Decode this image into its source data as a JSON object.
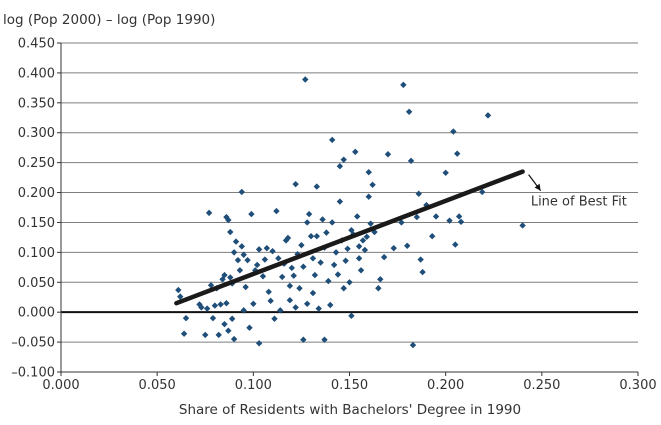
{
  "chart_data": {
    "type": "scatter",
    "ylabel": "log (Pop 2000) – log (Pop 1990)",
    "xlabel": "Share of Residents with Bachelors' Degree in 1990",
    "xlim": [
      0,
      0.3
    ],
    "ylim": [
      -0.1,
      0.45
    ],
    "x_ticks": [
      0,
      0.05,
      0.1,
      0.15,
      0.2,
      0.25,
      0.3
    ],
    "x_tick_labels": [
      "0.000",
      "0.050",
      "0.100",
      "0.150",
      "0.200",
      "0.250",
      "0.300"
    ],
    "y_ticks": [
      -0.1,
      -0.05,
      0,
      0.05,
      0.1,
      0.15,
      0.2,
      0.25,
      0.3,
      0.35,
      0.4,
      0.45
    ],
    "y_tick_labels": [
      "–0.100",
      "–0.050",
      "0.000",
      "0.050",
      "0.100",
      "0.150",
      "0.200",
      "0.250",
      "0.300",
      "0.350",
      "0.400",
      "0.450"
    ],
    "grid": "horizontal",
    "marker_color": "#1f4e79",
    "fit_line_color": "#1a1a1a",
    "fit_line": {
      "x": [
        0.06,
        0.24
      ],
      "y": [
        0.015,
        0.235
      ]
    },
    "annotation": {
      "text": "Line of Best Fit",
      "x": 0.25,
      "y": 0.18,
      "arrow_to": {
        "x": 0.24,
        "y": 0.235
      }
    },
    "points": [
      {
        "x": 0.061,
        "y": 0.037
      },
      {
        "x": 0.062,
        "y": 0.026
      },
      {
        "x": 0.064,
        "y": -0.036
      },
      {
        "x": 0.065,
        "y": -0.01
      },
      {
        "x": 0.072,
        "y": 0.013
      },
      {
        "x": 0.073,
        "y": 0.008
      },
      {
        "x": 0.075,
        "y": -0.038
      },
      {
        "x": 0.076,
        "y": 0.006
      },
      {
        "x": 0.077,
        "y": 0.166
      },
      {
        "x": 0.078,
        "y": 0.045
      },
      {
        "x": 0.079,
        "y": -0.01
      },
      {
        "x": 0.08,
        "y": 0.011
      },
      {
        "x": 0.081,
        "y": 0.04
      },
      {
        "x": 0.082,
        "y": -0.038
      },
      {
        "x": 0.083,
        "y": 0.013
      },
      {
        "x": 0.084,
        "y": 0.055
      },
      {
        "x": 0.085,
        "y": -0.02
      },
      {
        "x": 0.085,
        "y": 0.062
      },
      {
        "x": 0.086,
        "y": 0.015
      },
      {
        "x": 0.086,
        "y": 0.159
      },
      {
        "x": 0.087,
        "y": -0.031
      },
      {
        "x": 0.087,
        "y": 0.154
      },
      {
        "x": 0.088,
        "y": 0.134
      },
      {
        "x": 0.088,
        "y": 0.058
      },
      {
        "x": 0.089,
        "y": 0.048
      },
      {
        "x": 0.089,
        "y": -0.011
      },
      {
        "x": 0.09,
        "y": 0.1
      },
      {
        "x": 0.09,
        "y": -0.045
      },
      {
        "x": 0.091,
        "y": 0.118
      },
      {
        "x": 0.092,
        "y": 0.087
      },
      {
        "x": 0.093,
        "y": 0.07
      },
      {
        "x": 0.094,
        "y": 0.201
      },
      {
        "x": 0.094,
        "y": 0.11
      },
      {
        "x": 0.095,
        "y": 0.096
      },
      {
        "x": 0.095,
        "y": 0.003
      },
      {
        "x": 0.096,
        "y": 0.042
      },
      {
        "x": 0.097,
        "y": 0.087
      },
      {
        "x": 0.098,
        "y": -0.026
      },
      {
        "x": 0.099,
        "y": 0.164
      },
      {
        "x": 0.1,
        "y": 0.014
      },
      {
        "x": 0.101,
        "y": 0.07
      },
      {
        "x": 0.102,
        "y": 0.079
      },
      {
        "x": 0.103,
        "y": 0.105
      },
      {
        "x": 0.103,
        "y": -0.052
      },
      {
        "x": 0.105,
        "y": 0.06
      },
      {
        "x": 0.106,
        "y": 0.088
      },
      {
        "x": 0.107,
        "y": 0.107
      },
      {
        "x": 0.108,
        "y": 0.034
      },
      {
        "x": 0.109,
        "y": 0.019
      },
      {
        "x": 0.11,
        "y": 0.102
      },
      {
        "x": 0.111,
        "y": -0.011
      },
      {
        "x": 0.112,
        "y": 0.169
      },
      {
        "x": 0.113,
        "y": 0.09
      },
      {
        "x": 0.114,
        "y": 0.003
      },
      {
        "x": 0.115,
        "y": 0.059
      },
      {
        "x": 0.116,
        "y": 0.081
      },
      {
        "x": 0.117,
        "y": 0.12
      },
      {
        "x": 0.118,
        "y": 0.124
      },
      {
        "x": 0.119,
        "y": 0.02
      },
      {
        "x": 0.119,
        "y": 0.044
      },
      {
        "x": 0.12,
        "y": 0.074
      },
      {
        "x": 0.121,
        "y": 0.061
      },
      {
        "x": 0.122,
        "y": 0.214
      },
      {
        "x": 0.122,
        "y": 0.008
      },
      {
        "x": 0.123,
        "y": 0.097
      },
      {
        "x": 0.124,
        "y": 0.04
      },
      {
        "x": 0.125,
        "y": 0.112
      },
      {
        "x": 0.126,
        "y": 0.076
      },
      {
        "x": 0.126,
        "y": -0.046
      },
      {
        "x": 0.127,
        "y": 0.389
      },
      {
        "x": 0.128,
        "y": 0.15
      },
      {
        "x": 0.128,
        "y": 0.014
      },
      {
        "x": 0.129,
        "y": 0.164
      },
      {
        "x": 0.13,
        "y": 0.127
      },
      {
        "x": 0.131,
        "y": 0.09
      },
      {
        "x": 0.131,
        "y": 0.032
      },
      {
        "x": 0.132,
        "y": 0.062
      },
      {
        "x": 0.133,
        "y": 0.21
      },
      {
        "x": 0.133,
        "y": 0.127
      },
      {
        "x": 0.134,
        "y": 0.006
      },
      {
        "x": 0.135,
        "y": 0.083
      },
      {
        "x": 0.136,
        "y": 0.155
      },
      {
        "x": 0.137,
        "y": 0.108
      },
      {
        "x": 0.137,
        "y": -0.046
      },
      {
        "x": 0.138,
        "y": 0.133
      },
      {
        "x": 0.139,
        "y": 0.052
      },
      {
        "x": 0.14,
        "y": 0.012
      },
      {
        "x": 0.141,
        "y": 0.15
      },
      {
        "x": 0.141,
        "y": 0.288
      },
      {
        "x": 0.142,
        "y": 0.079
      },
      {
        "x": 0.143,
        "y": 0.1
      },
      {
        "x": 0.144,
        "y": 0.063
      },
      {
        "x": 0.145,
        "y": 0.185
      },
      {
        "x": 0.145,
        "y": 0.244
      },
      {
        "x": 0.146,
        "y": 0.12
      },
      {
        "x": 0.147,
        "y": 0.255
      },
      {
        "x": 0.147,
        "y": 0.04
      },
      {
        "x": 0.148,
        "y": 0.086
      },
      {
        "x": 0.149,
        "y": 0.106
      },
      {
        "x": 0.15,
        "y": 0.05
      },
      {
        "x": 0.151,
        "y": 0.137
      },
      {
        "x": 0.151,
        "y": -0.006
      },
      {
        "x": 0.152,
        "y": 0.13
      },
      {
        "x": 0.153,
        "y": 0.268
      },
      {
        "x": 0.154,
        "y": 0.16
      },
      {
        "x": 0.155,
        "y": 0.09
      },
      {
        "x": 0.155,
        "y": 0.11
      },
      {
        "x": 0.156,
        "y": 0.07
      },
      {
        "x": 0.157,
        "y": 0.12
      },
      {
        "x": 0.158,
        "y": 0.104
      },
      {
        "x": 0.159,
        "y": 0.126
      },
      {
        "x": 0.16,
        "y": 0.193
      },
      {
        "x": 0.16,
        "y": 0.234
      },
      {
        "x": 0.161,
        "y": 0.148
      },
      {
        "x": 0.162,
        "y": 0.213
      },
      {
        "x": 0.163,
        "y": 0.134
      },
      {
        "x": 0.165,
        "y": 0.04
      },
      {
        "x": 0.166,
        "y": 0.055
      },
      {
        "x": 0.168,
        "y": 0.092
      },
      {
        "x": 0.17,
        "y": 0.264
      },
      {
        "x": 0.173,
        "y": 0.107
      },
      {
        "x": 0.177,
        "y": 0.15
      },
      {
        "x": 0.178,
        "y": 0.38
      },
      {
        "x": 0.18,
        "y": 0.111
      },
      {
        "x": 0.181,
        "y": 0.335
      },
      {
        "x": 0.182,
        "y": 0.253
      },
      {
        "x": 0.183,
        "y": -0.055
      },
      {
        "x": 0.185,
        "y": 0.159
      },
      {
        "x": 0.186,
        "y": 0.198
      },
      {
        "x": 0.187,
        "y": 0.088
      },
      {
        "x": 0.188,
        "y": 0.067
      },
      {
        "x": 0.19,
        "y": 0.179
      },
      {
        "x": 0.193,
        "y": 0.127
      },
      {
        "x": 0.195,
        "y": 0.16
      },
      {
        "x": 0.2,
        "y": 0.233
      },
      {
        "x": 0.202,
        "y": 0.153
      },
      {
        "x": 0.204,
        "y": 0.302
      },
      {
        "x": 0.205,
        "y": 0.113
      },
      {
        "x": 0.206,
        "y": 0.265
      },
      {
        "x": 0.207,
        "y": 0.16
      },
      {
        "x": 0.208,
        "y": 0.151
      },
      {
        "x": 0.219,
        "y": 0.201
      },
      {
        "x": 0.222,
        "y": 0.329
      },
      {
        "x": 0.24,
        "y": 0.145
      }
    ]
  }
}
